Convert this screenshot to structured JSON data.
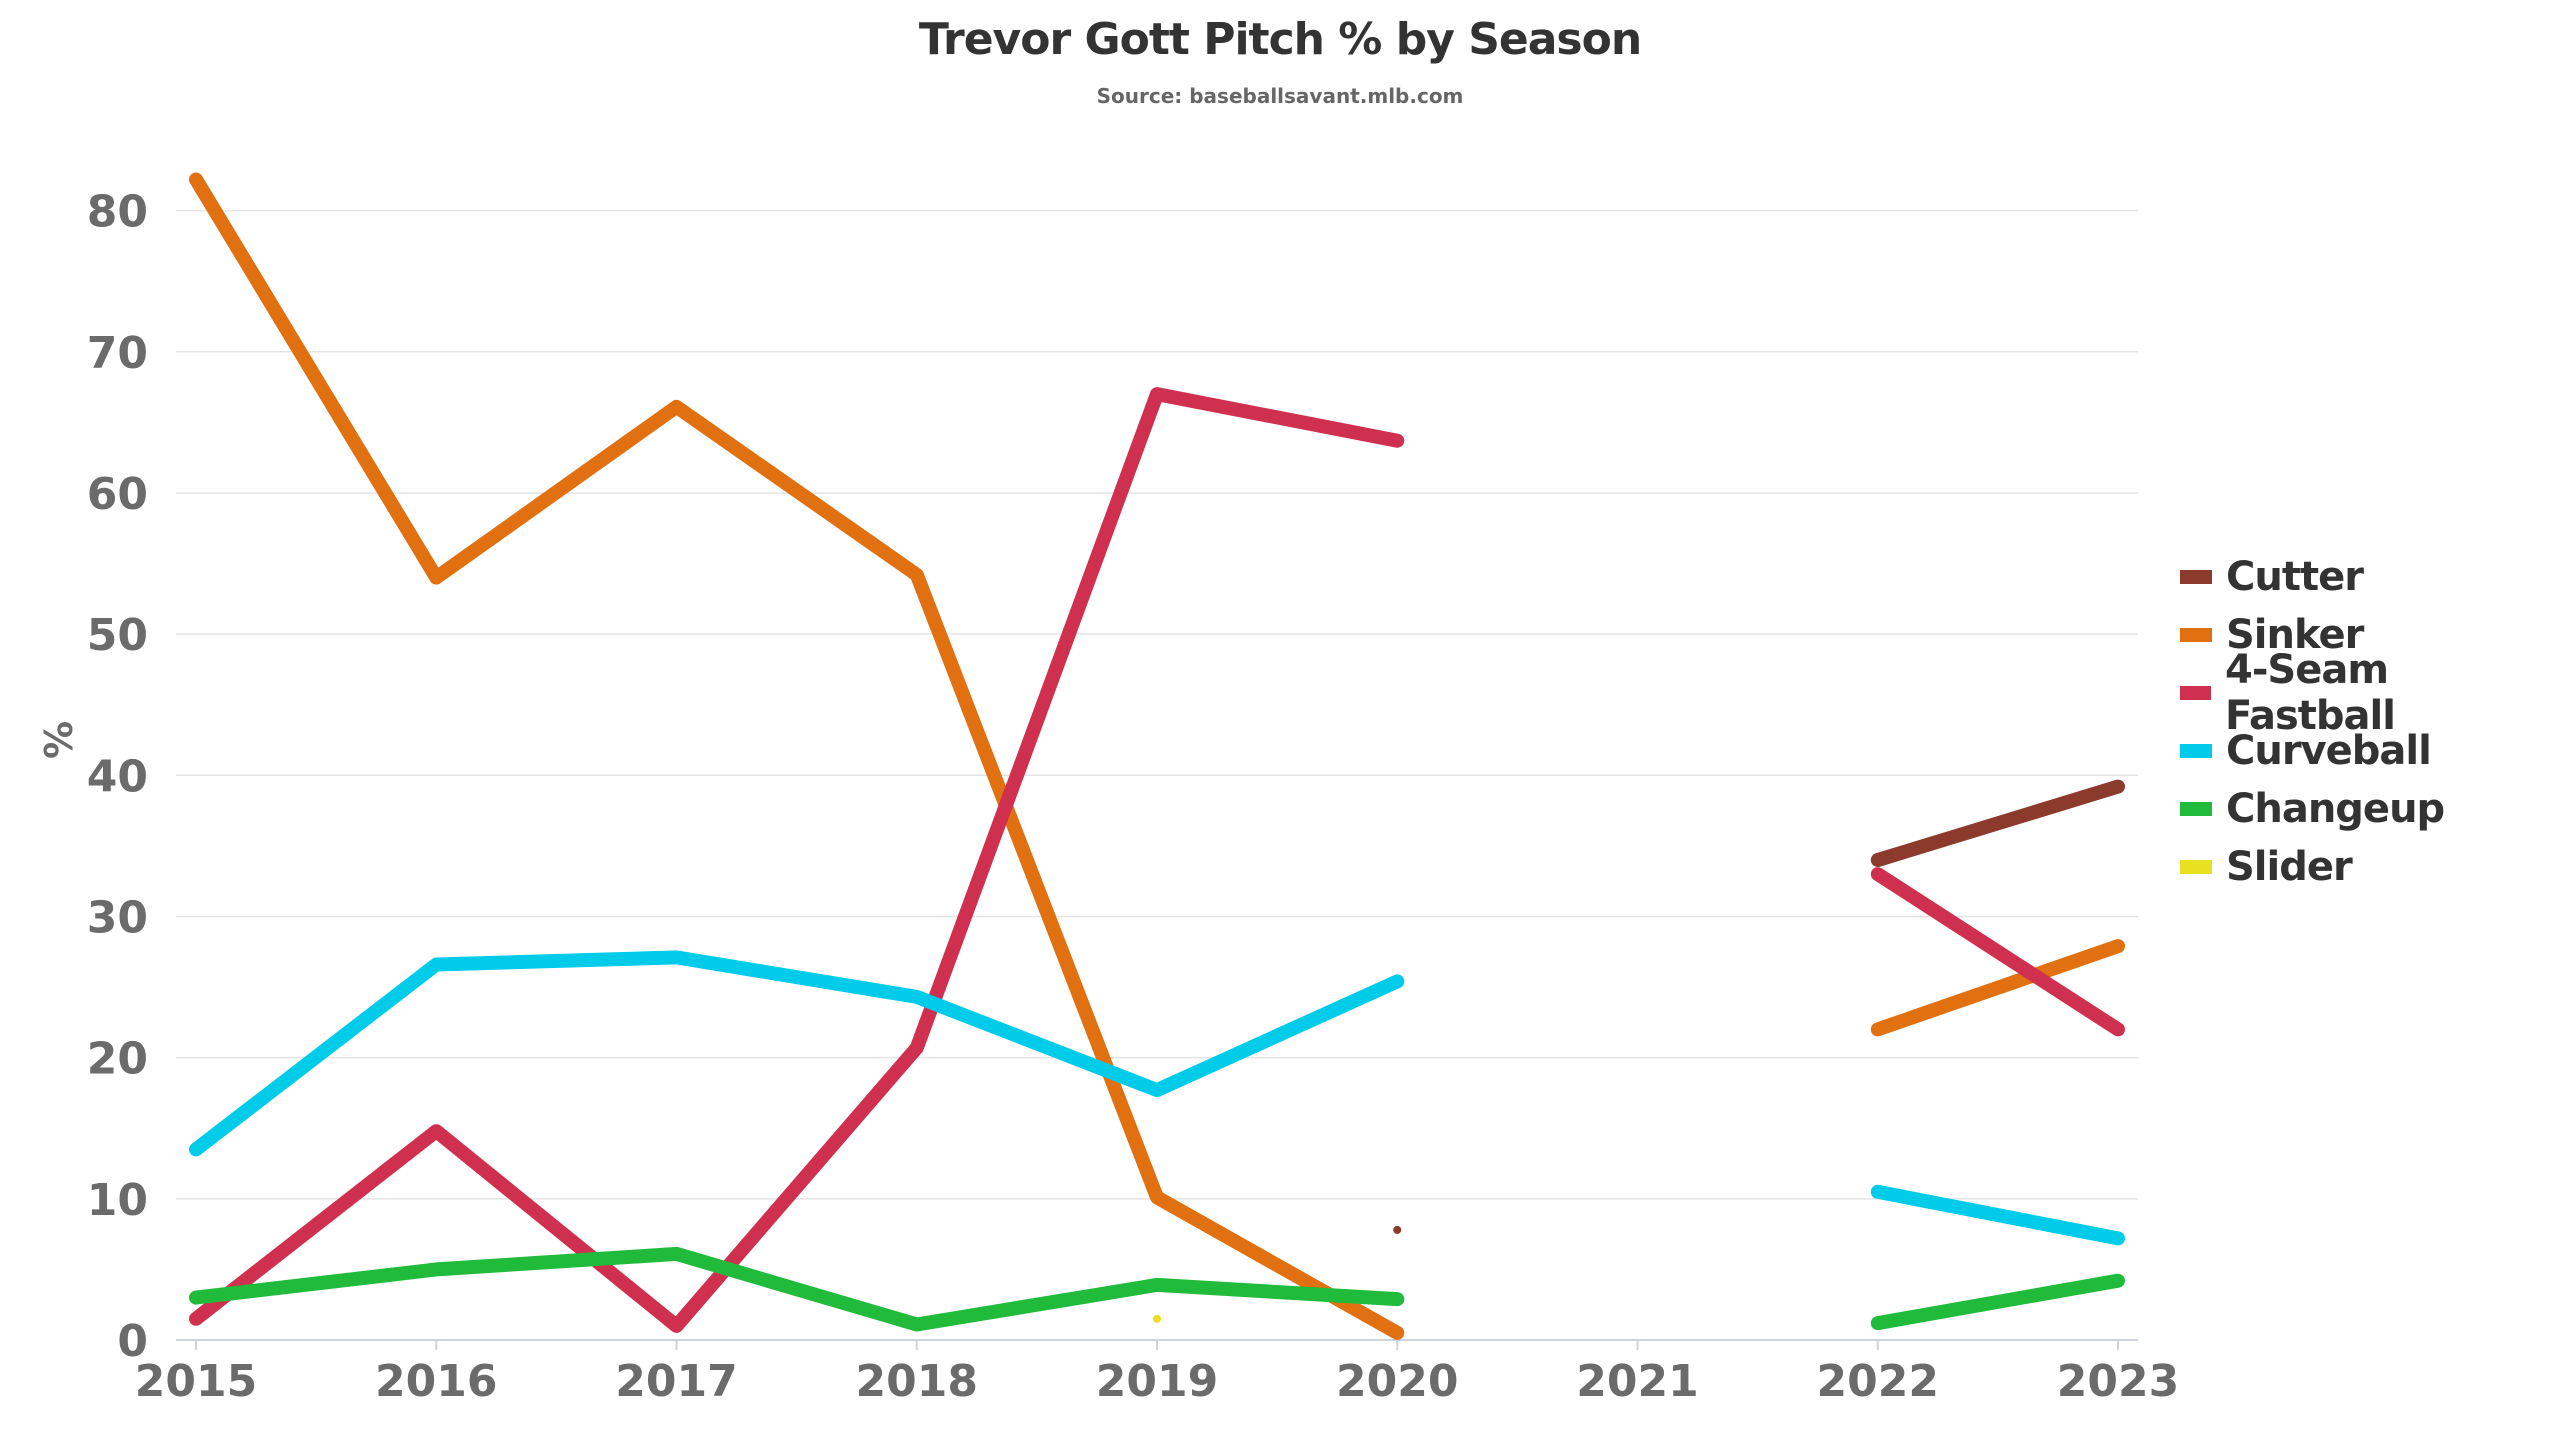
{
  "chart_data": {
    "type": "line",
    "title": "Trevor Gott Pitch % by Season",
    "subtitle": "Source: baseballsavant.mlb.com",
    "xlabel": "",
    "ylabel": "%",
    "x": [
      "2015",
      "2016",
      "2017",
      "2018",
      "2019",
      "2020",
      "2021",
      "2022",
      "2023"
    ],
    "ylim": [
      0,
      85
    ],
    "yticks": [
      "0",
      "10",
      "20",
      "30",
      "40",
      "50",
      "60",
      "70",
      "80"
    ],
    "grid": true,
    "legend_position": "right",
    "series": [
      {
        "name": "Cutter",
        "color": "#8b3a2b",
        "values": [
          null,
          null,
          null,
          null,
          null,
          7.8,
          null,
          34.0,
          39.2
        ]
      },
      {
        "name": "Sinker",
        "color": "#e07010",
        "values": [
          82.2,
          54.0,
          66.1,
          54.2,
          10.1,
          0.5,
          null,
          22.0,
          27.9
        ]
      },
      {
        "name": "4-Seam Fastball",
        "color": "#d0304f",
        "values": [
          1.5,
          14.8,
          1.0,
          20.7,
          67.0,
          63.7,
          null,
          33.0,
          22.0
        ]
      },
      {
        "name": "Curveball",
        "color": "#00ccea",
        "values": [
          13.5,
          26.6,
          27.1,
          24.3,
          17.7,
          25.4,
          null,
          10.5,
          7.2
        ]
      },
      {
        "name": "Changeup",
        "color": "#20bb3a",
        "values": [
          3.0,
          5.0,
          6.1,
          1.1,
          3.9,
          2.9,
          null,
          1.2,
          4.2
        ]
      },
      {
        "name": "Slider",
        "color": "#e8e020",
        "values": [
          null,
          null,
          null,
          null,
          1.5,
          null,
          null,
          null,
          null
        ]
      }
    ]
  }
}
